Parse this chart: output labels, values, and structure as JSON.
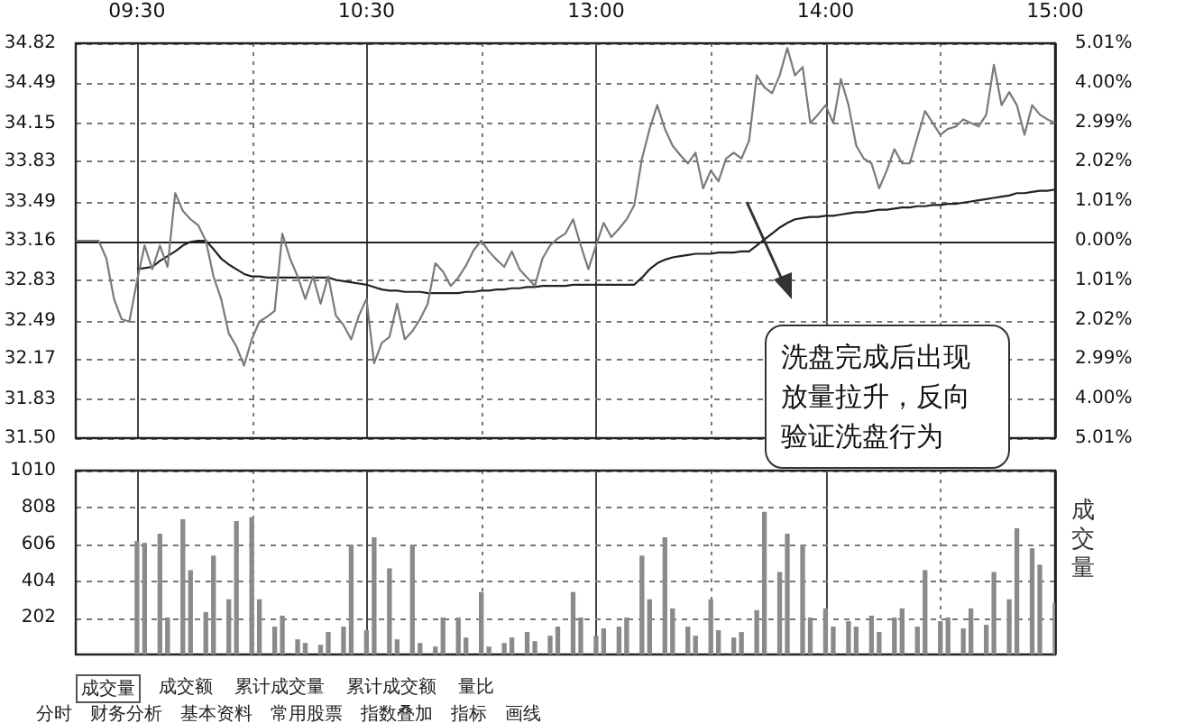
{
  "chart_data": [
    {
      "type": "line",
      "categories": [
        null,
        null,
        null,
        null,
        null,
        null,
        null,
        null,
        "09:30",
        null,
        null,
        null,
        null,
        null,
        null,
        null,
        null,
        null,
        null,
        null,
        null,
        null,
        null,
        null,
        null,
        null,
        null,
        null,
        null,
        null,
        null,
        null,
        null,
        null,
        null,
        null,
        null,
        null,
        "10:30",
        null,
        null,
        null,
        null,
        null,
        null,
        null,
        null,
        null,
        null,
        null,
        null,
        null,
        null,
        null,
        null,
        null,
        null,
        null,
        null,
        null,
        null,
        null,
        null,
        null,
        null,
        null,
        null,
        null,
        "13:00",
        null,
        null,
        null,
        null,
        null,
        null,
        null,
        null,
        null,
        null,
        null,
        null,
        null,
        null,
        null,
        null,
        null,
        null,
        null,
        null,
        null,
        null,
        null,
        null,
        null,
        null,
        null,
        null,
        null,
        "14:00",
        null,
        null,
        null,
        null,
        null,
        null,
        null,
        null,
        null,
        null,
        null,
        null,
        null,
        null,
        null,
        null,
        null,
        null,
        null,
        null,
        null,
        null,
        null,
        null,
        null,
        null,
        null,
        null,
        null,
        "15:00"
      ],
      "ylim": [
        31.5,
        34.82
      ],
      "yticks": [
        34.82,
        34.49,
        34.15,
        33.83,
        33.49,
        33.16,
        32.83,
        32.49,
        32.17,
        31.83,
        {
          "value": 31.5,
          "label": "31.50"
        }
      ],
      "y2lim": [
        -5.01,
        5.01
      ],
      "y2ticks": [
        {
          "value": 5.01,
          "label": "5.01%"
        },
        {
          "value": 4.0,
          "label": "4.00%"
        },
        {
          "value": 2.99,
          "label": "2.99%"
        },
        {
          "value": 2.02,
          "label": "2.02%"
        },
        {
          "value": 1.01,
          "label": "1.01%"
        },
        {
          "value": 0,
          "label": "0.00%"
        },
        {
          "value": -1.01,
          "label": "1.01%"
        },
        {
          "value": -2.02,
          "label": "2.02%"
        },
        {
          "value": -2.99,
          "label": "2.99%"
        },
        {
          "value": -4.0,
          "label": "4.00%"
        },
        {
          "value": -5.01,
          "label": "5.01%"
        }
      ],
      "grid": true,
      "marker": "none",
      "ref_lines": [
        {
          "axis": "y",
          "value": 33.16,
          "color": "#222222",
          "line_style": "solid"
        }
      ],
      "annotations": [
        "洗盘完成后出现放量拉升，反向验证洗盘行为"
      ],
      "series": [
        {
          "color": "#7a7a7a",
          "values": [
            33.16,
            33.16,
            33.16,
            33.16,
            33.01,
            32.67,
            32.5,
            32.48,
            32.82,
            33.12,
            32.92,
            33.12,
            32.94,
            33.56,
            33.41,
            33.34,
            33.29,
            33.16,
            32.86,
            32.67,
            32.38,
            32.27,
            32.11,
            32.33,
            32.48,
            32.52,
            32.57,
            33.22,
            33.01,
            32.86,
            32.67,
            32.86,
            32.63,
            32.86,
            32.53,
            32.45,
            32.33,
            32.53,
            32.67,
            32.13,
            32.3,
            32.35,
            32.63,
            32.33,
            32.4,
            32.5,
            32.63,
            32.97,
            32.9,
            32.78,
            32.85,
            32.95,
            33.08,
            33.16,
            33.07,
            33.0,
            32.94,
            33.07,
            32.92,
            32.85,
            32.78,
            33.01,
            33.12,
            33.18,
            33.22,
            33.34,
            33.12,
            32.92,
            33.12,
            33.31,
            33.19,
            33.26,
            33.34,
            33.46,
            33.85,
            34.1,
            34.3,
            34.1,
            33.96,
            33.88,
            33.81,
            33.9,
            33.6,
            33.75,
            33.66,
            33.85,
            33.9,
            33.85,
            34.0,
            34.55,
            34.45,
            34.4,
            34.55,
            34.78,
            34.55,
            34.62,
            34.15,
            34.22,
            34.3,
            34.15,
            34.52,
            34.3,
            33.96,
            33.85,
            33.81,
            33.6,
            33.75,
            33.93,
            33.81,
            33.81,
            34.03,
            34.25,
            34.15,
            34.05,
            34.1,
            34.12,
            34.18,
            34.15,
            34.12,
            34.22,
            34.64,
            34.3,
            34.41,
            34.3,
            34.05,
            34.3,
            34.22,
            34.18,
            34.15
          ]
        },
        {
          "color": "#222222",
          "values": [
            null,
            null,
            null,
            null,
            null,
            null,
            null,
            null,
            32.92,
            32.93,
            32.94,
            32.99,
            33.03,
            33.07,
            33.12,
            33.15,
            33.16,
            33.16,
            33.09,
            33.01,
            32.96,
            32.92,
            32.88,
            32.86,
            32.86,
            32.85,
            32.85,
            32.85,
            32.85,
            32.85,
            32.85,
            32.85,
            32.85,
            32.85,
            32.83,
            32.82,
            32.81,
            32.8,
            32.79,
            32.77,
            32.75,
            32.74,
            32.74,
            32.73,
            32.73,
            32.73,
            32.72,
            32.72,
            32.72,
            32.72,
            32.72,
            32.73,
            32.73,
            32.74,
            32.74,
            32.75,
            32.75,
            32.76,
            32.76,
            32.77,
            32.77,
            32.78,
            32.78,
            32.78,
            32.78,
            32.79,
            32.79,
            32.79,
            32.79,
            32.79,
            32.79,
            32.79,
            32.79,
            32.79,
            32.85,
            32.92,
            32.97,
            33.0,
            33.02,
            33.03,
            33.04,
            33.05,
            33.05,
            33.05,
            33.06,
            33.06,
            33.06,
            33.07,
            33.07,
            33.12,
            33.17,
            33.22,
            33.27,
            33.31,
            33.34,
            33.35,
            33.36,
            33.36,
            33.37,
            33.37,
            33.38,
            33.39,
            33.4,
            33.4,
            33.41,
            33.42,
            33.42,
            33.43,
            33.44,
            33.44,
            33.45,
            33.45,
            33.46,
            33.46,
            33.47,
            33.47,
            33.48,
            33.49,
            33.5,
            33.51,
            33.52,
            33.53,
            33.54,
            33.56,
            33.56,
            33.57,
            33.58,
            33.58,
            33.59
          ]
        }
      ]
    },
    {
      "type": "bar",
      "ylabel": "成交量",
      "categories": [
        null,
        null,
        null,
        null,
        null,
        null,
        null,
        null,
        null,
        null,
        null,
        null,
        null,
        null,
        null,
        null,
        null,
        null,
        null,
        null,
        null,
        null,
        null,
        null,
        null,
        null,
        null,
        null,
        null,
        null,
        null,
        null,
        null,
        null,
        null,
        null,
        null,
        null,
        null,
        null,
        null,
        null,
        null,
        null,
        null,
        null,
        null,
        null,
        null,
        null,
        null,
        null,
        null,
        null,
        null,
        null,
        null,
        null,
        null,
        null,
        null,
        null,
        null,
        null,
        null,
        null,
        null,
        null,
        null,
        null,
        null,
        null,
        null,
        null,
        null,
        null,
        null,
        null,
        null,
        null,
        null,
        null,
        null,
        null,
        null,
        null,
        null,
        null,
        null,
        null,
        null,
        null,
        null,
        null,
        null,
        null,
        null,
        null,
        null,
        null,
        null,
        null,
        null,
        null,
        null,
        null,
        null,
        null,
        null,
        null,
        null,
        null,
        null,
        null,
        null,
        null,
        null,
        null,
        null,
        null,
        null,
        null,
        null,
        null,
        null,
        null,
        null,
        null,
        null
      ],
      "ylim": [
        0,
        1010
      ],
      "yticks": [
        202,
        404,
        606,
        808,
        1010
      ],
      "grid": true,
      "tick_labels": "y",
      "annotations": [
        "成交量",
        "成交额",
        "累计成交量",
        "累计成交额",
        "量比",
        "分时",
        "财务分析",
        "基本资料",
        "常用股票",
        "指数叠加",
        "指标",
        "画线"
      ],
      "series": [
        {
          "color": "#8a8a8a",
          "values": [
            null,
            null,
            null,
            null,
            null,
            null,
            null,
            null,
            620,
            610,
            null,
            660,
            200,
            null,
            740,
            460,
            null,
            230,
            540,
            null,
            300,
            730,
            null,
            750,
            300,
            null,
            150,
            210,
            null,
            80,
            60,
            null,
            50,
            120,
            null,
            150,
            600,
            null,
            130,
            640,
            null,
            470,
            80,
            null,
            600,
            60,
            null,
            40,
            200,
            null,
            200,
            90,
            null,
            340,
            40,
            null,
            60,
            90,
            null,
            120,
            70,
            null,
            100,
            150,
            null,
            340,
            200,
            null,
            100,
            140,
            null,
            150,
            200,
            null,
            540,
            300,
            null,
            640,
            250,
            null,
            150,
            100,
            null,
            300,
            130,
            null,
            90,
            120,
            null,
            240,
            780,
            null,
            450,
            660,
            null,
            600,
            200,
            null,
            250,
            150,
            null,
            180,
            150,
            null,
            210,
            120,
            null,
            200,
            250,
            null,
            150,
            460,
            null,
            180,
            200,
            null,
            140,
            250,
            null,
            160,
            450,
            null,
            300,
            690,
            null,
            580,
            490,
            null,
            280
          ]
        }
      ]
    }
  ]
}
